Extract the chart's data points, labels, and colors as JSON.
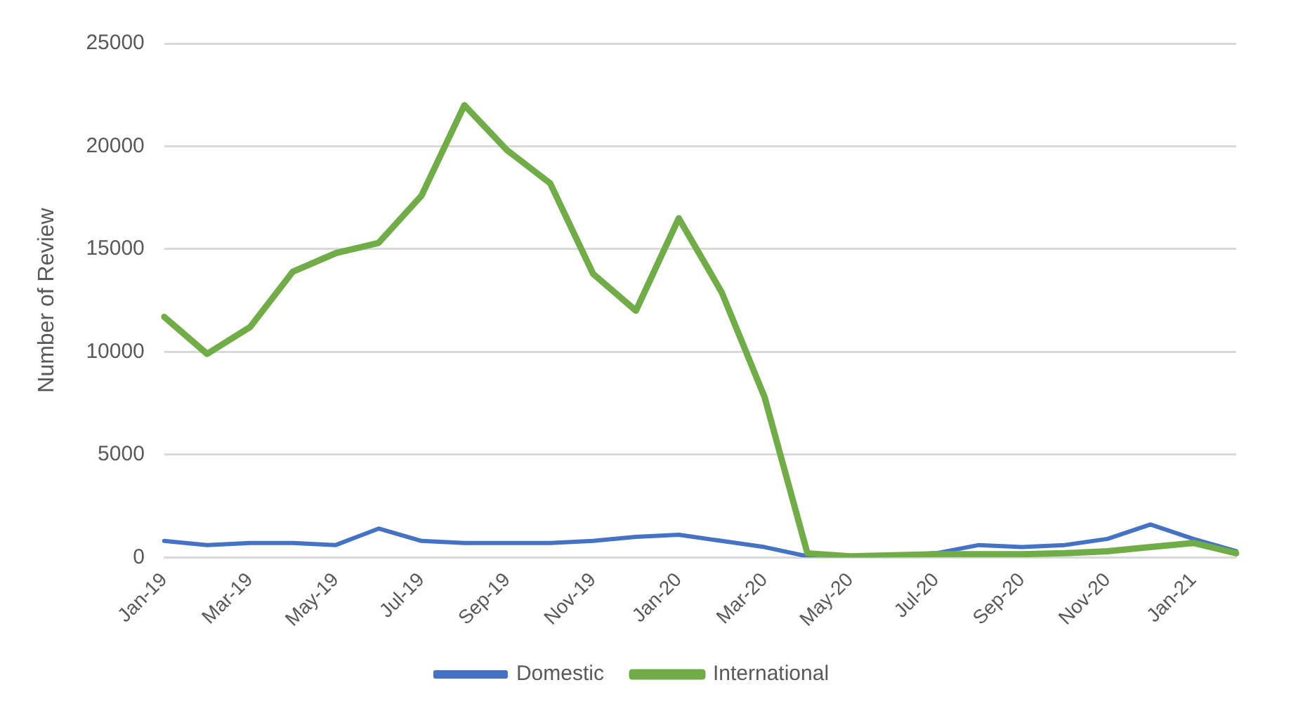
{
  "chart_data": {
    "type": "line",
    "ylabel": "Number of Review",
    "categories": [
      "Jan-19",
      null,
      "Mar-19",
      null,
      "May-19",
      null,
      "Jul-19",
      null,
      "Sep-19",
      null,
      "Nov-19",
      null,
      "Jan-20",
      null,
      "Mar-20",
      null,
      "May-20",
      null,
      "Jul-20",
      null,
      "Sep-20",
      null,
      "Nov-20",
      null,
      "Jan-21",
      null
    ],
    "series": [
      {
        "name": "Domestic",
        "color": "#4472c4",
        "values": [
          800,
          600,
          700,
          700,
          600,
          1400,
          800,
          700,
          700,
          700,
          800,
          1000,
          1100,
          800,
          500,
          50,
          50,
          100,
          200,
          600,
          500,
          600,
          900,
          1600,
          900,
          300
        ]
      },
      {
        "name": "International",
        "color": "#70ad47",
        "values": [
          11700,
          9900,
          11200,
          13900,
          14800,
          15300,
          17600,
          22000,
          19800,
          18200,
          13800,
          12000,
          16500,
          12900,
          7800,
          200,
          50,
          100,
          150,
          150,
          150,
          200,
          300,
          500,
          700,
          200
        ]
      }
    ],
    "ylim": [
      0,
      25000
    ],
    "yticks": [
      0,
      5000,
      10000,
      15000,
      20000,
      25000
    ],
    "grid": "y",
    "legend": "bottom",
    "marker": "none",
    "line_style": "solid"
  }
}
